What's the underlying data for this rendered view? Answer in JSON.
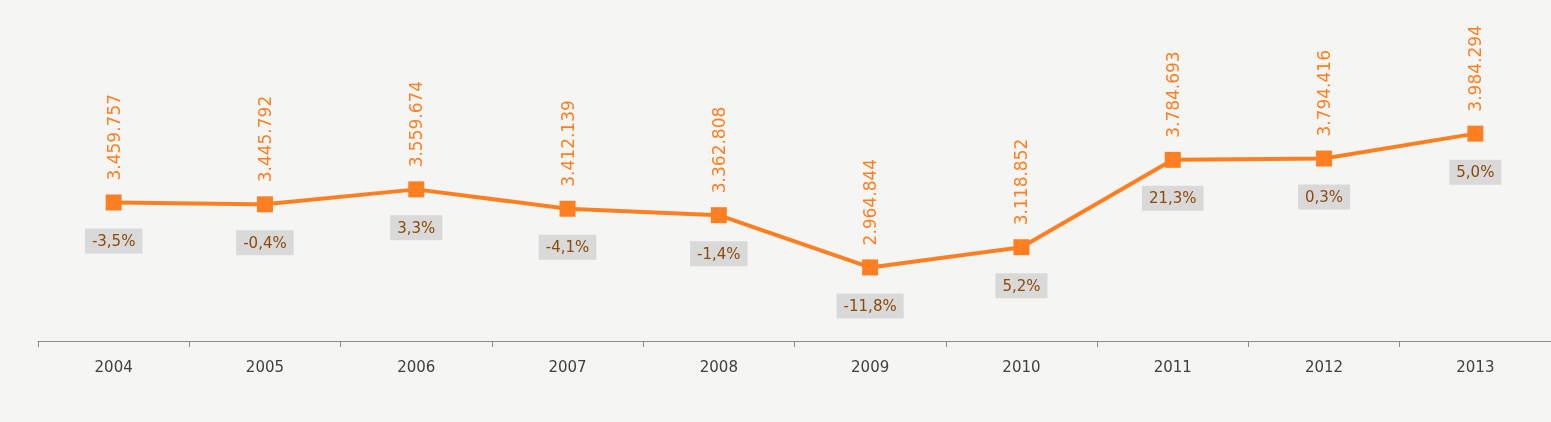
{
  "chart_data": {
    "type": "line",
    "categories": [
      "2004",
      "2005",
      "2006",
      "2007",
      "2008",
      "2009",
      "2010",
      "2011",
      "2012",
      "2013"
    ],
    "series": [
      {
        "color": "#fe7f22",
        "values": [
          3459757,
          3445792,
          3559674,
          3412139,
          3362808,
          2964844,
          3118852,
          3784693,
          3794416,
          3984294
        ],
        "value_labels": [
          "3.459.757",
          "3.445.792",
          "3.559.674",
          "3.412.139",
          "3.362.808",
          "2.964.844",
          "3.118.852",
          "3.784.693",
          "3.794.416",
          "3.984.294"
        ]
      }
    ],
    "marker": "square",
    "line_style": "solid",
    "grid": false,
    "tick_labels": "x",
    "annotations": [
      {
        "text": "-3,5%",
        "x": "2004",
        "y": 3459757
      },
      {
        "text": "-0,4%",
        "x": "2005",
        "y": 3445792
      },
      {
        "text": "3,3%",
        "x": "2006",
        "y": 3559674
      },
      {
        "text": "-4,1%",
        "x": "2007",
        "y": 3412139
      },
      {
        "text": "-1,4%",
        "x": "2008",
        "y": 3362808
      },
      {
        "text": "-11,8%",
        "x": "2009",
        "y": 2964844
      },
      {
        "text": "5,2%",
        "x": "2010",
        "y": 3118852
      },
      {
        "text": "21,3%",
        "x": "2011",
        "y": 3784693
      },
      {
        "text": "0,3%",
        "x": "2012",
        "y": 3794416
      },
      {
        "text": "5,0%",
        "x": "2013",
        "y": 3984294
      }
    ]
  }
}
